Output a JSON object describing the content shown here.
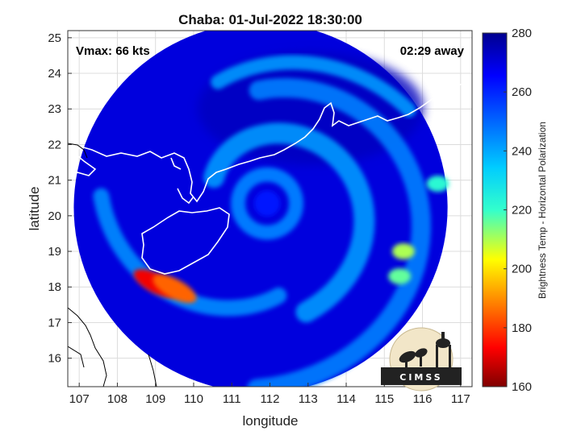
{
  "chart_data": {
    "type": "heatmap",
    "title": "Chaba: 01-Jul-2022 18:30:00",
    "xlabel": "longitude",
    "ylabel": "latitude",
    "xlim": [
      106.7,
      117.3
    ],
    "ylim": [
      15.2,
      25.2
    ],
    "xticks": [
      107,
      108,
      109,
      110,
      111,
      112,
      113,
      114,
      115,
      116,
      117
    ],
    "yticks": [
      16,
      17,
      18,
      19,
      20,
      21,
      22,
      23,
      24,
      25
    ],
    "grid": true,
    "storm_center": {
      "lon": 111.8,
      "lat": 20.3
    },
    "swath_radius_deg": 4.9,
    "background_value": 270,
    "features": [
      {
        "kind": "eye-ring",
        "lon": 111.8,
        "lat": 20.25,
        "value": 247
      },
      {
        "kind": "eye",
        "lon": 111.8,
        "lat": 20.3,
        "value": 262
      },
      {
        "kind": "spiral-band",
        "value": 242
      },
      {
        "kind": "hot-spot",
        "lon": 109.0,
        "lat": 18.1,
        "value": 172
      },
      {
        "kind": "hot-spot",
        "lon": 109.5,
        "lat": 17.95,
        "value": 185
      },
      {
        "kind": "warm-spot",
        "lon": 115.5,
        "lat": 19.0,
        "value": 210
      },
      {
        "kind": "warm-spot",
        "lon": 116.4,
        "lat": 20.9,
        "value": 222
      },
      {
        "kind": "warm-spot",
        "lon": 115.4,
        "lat": 18.3,
        "value": 216
      }
    ],
    "colorbar": {
      "label": "Brightness Temp - Horizontal Polarization",
      "min": 160,
      "max": 280,
      "ticks": [
        160,
        180,
        200,
        220,
        240,
        260,
        280
      ],
      "colormap": "jet"
    },
    "annotations": {
      "vmax": "Vmax: 66 kts",
      "time_away": "02:29 away"
    }
  },
  "logo": {
    "text": "CIMSS"
  }
}
